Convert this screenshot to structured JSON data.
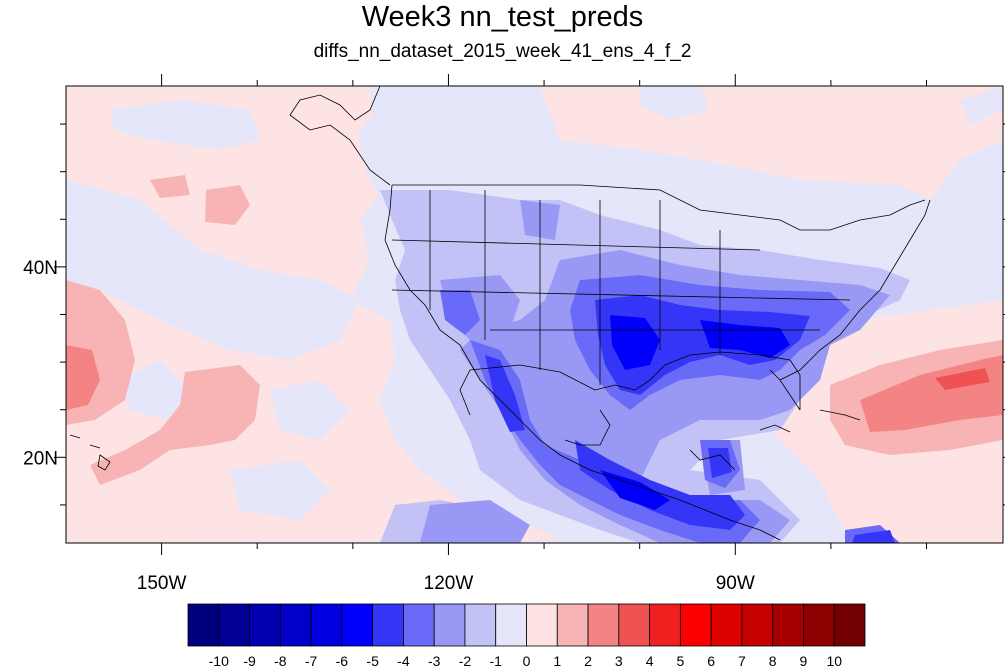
{
  "title": "Week3 nn_test_preds",
  "subtitle": "diffs_nn_dataset_2015_week_41_ens_4_f_2",
  "map": {
    "lon_range": [
      -160,
      -62
    ],
    "lat_range": [
      11,
      59
    ],
    "lon_labels": [
      {
        "lon": -150,
        "text": "150W"
      },
      {
        "lon": -120,
        "text": "120W"
      },
      {
        "lon": -90,
        "text": "90W"
      }
    ],
    "lat_labels": [
      {
        "lat": 40,
        "text": "40N"
      },
      {
        "lat": 20,
        "text": "20N"
      }
    ]
  },
  "colorbar": {
    "labels": [
      "-10",
      "-9",
      "-8",
      "-7",
      "-6",
      "-5",
      "-4",
      "-3",
      "-2",
      "-1",
      "0",
      "1",
      "2",
      "3",
      "4",
      "5",
      "6",
      "7",
      "8",
      "9",
      "10"
    ],
    "colors": [
      "#00007e",
      "#000097",
      "#0000b0",
      "#0000c8",
      "#0000e0",
      "#0000fa",
      "#3535f8",
      "#6a6af8",
      "#9999f5",
      "#c2c2f7",
      "#e6e6fa",
      "#fde3e3",
      "#f8b4b4",
      "#f48484",
      "#ef5252",
      "#f02020",
      "#fb0000",
      "#df0000",
      "#c40000",
      "#a60000",
      "#8c0000",
      "#730000"
    ]
  }
}
